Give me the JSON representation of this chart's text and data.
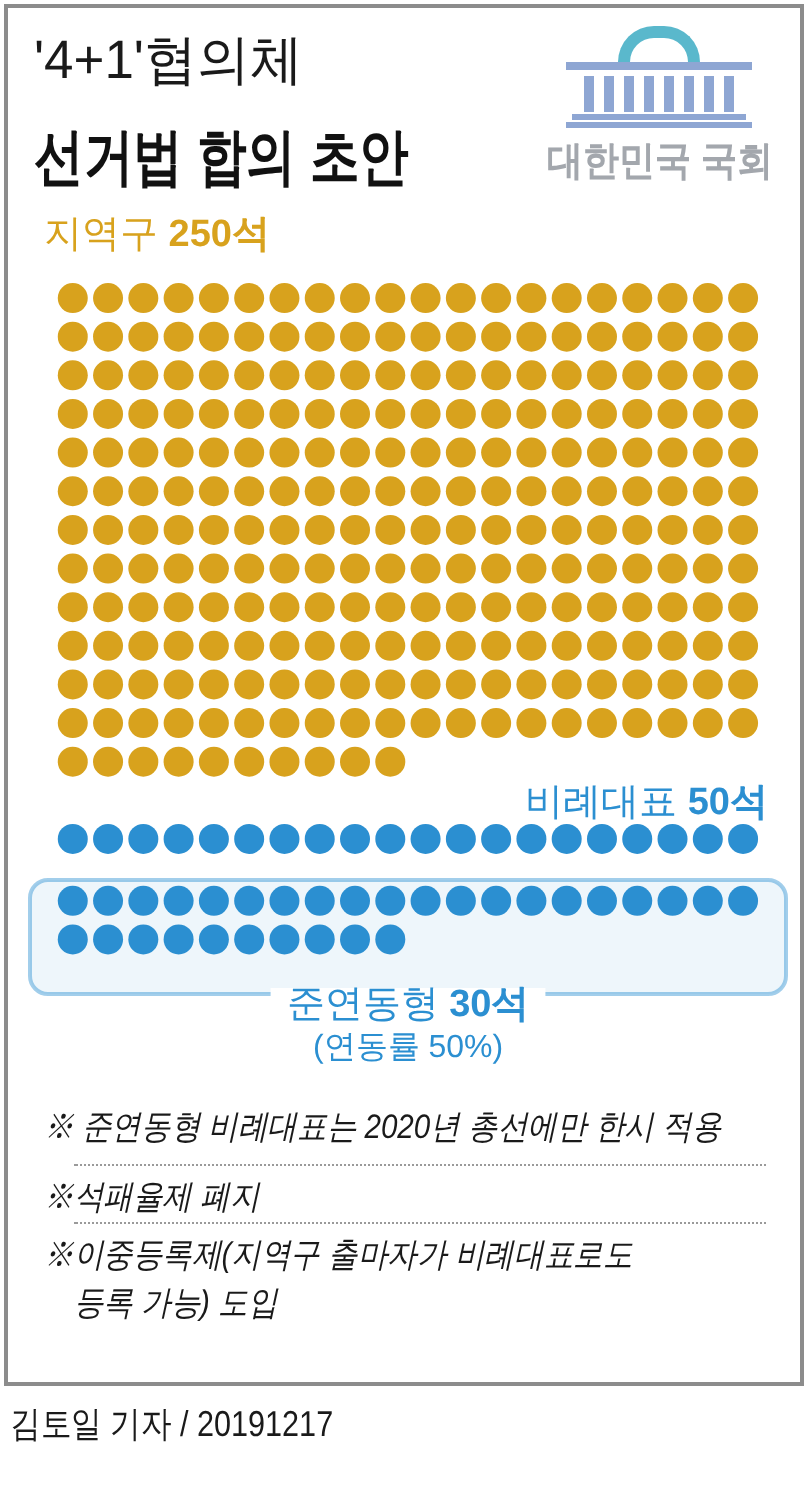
{
  "chart_data": {
    "type": "other",
    "title": "'4+1'협의체",
    "subtitle": "선거법 합의 초안",
    "categories": [
      "지역구",
      "비례대표",
      "준연동형"
    ],
    "values": [
      250,
      50,
      30
    ],
    "value_labels": [
      "250석",
      "50석",
      "30석"
    ],
    "colors": [
      "#d8a21d",
      "#2b8fd1",
      "#2b8fd1"
    ],
    "annotations": [
      "대한민국 국회",
      "(연동률 50%)",
      "※ 준연동형 비례대표는 2020년 총선에만 한시 적용",
      "※석패율제 폐지",
      "※이중등록제(지역구 출마자가 비례대표로도\n등록 가능) 도입",
      "김토일 기자 / 20191217"
    ]
  }
}
